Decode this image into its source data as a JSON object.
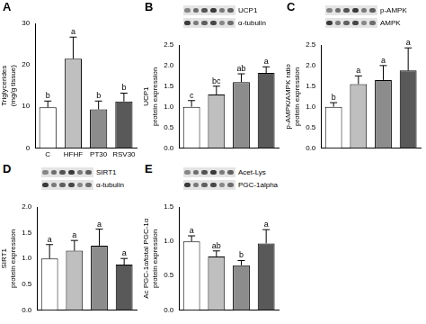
{
  "chart_data": [
    {
      "panel": "A",
      "type": "bar",
      "categories": [
        "C",
        "HFHF",
        "PT30",
        "RSV30"
      ],
      "values": [
        9.8,
        21.5,
        9.3,
        11.2
      ],
      "errors": [
        1.5,
        5.2,
        2.0,
        2.0
      ],
      "letters": [
        "b",
        "a",
        "b",
        "b"
      ],
      "colors": [
        "#ffffff",
        "#bfbfbf",
        "#8c8c8c",
        "#595959"
      ],
      "y_label": [
        "Triglycerides",
        "(mg/g tissue)"
      ],
      "ylim": [
        0,
        30
      ],
      "yticks": [
        0,
        10,
        20,
        30
      ],
      "grid": false
    },
    {
      "panel": "B",
      "type": "bar",
      "categories": [
        null,
        null,
        null,
        null
      ],
      "values": [
        1.0,
        1.3,
        1.6,
        1.82
      ],
      "errors": [
        0.15,
        0.2,
        0.2,
        0.15
      ],
      "letters": [
        "c",
        "bc",
        "ab",
        "a"
      ],
      "colors": [
        "#ffffff",
        "#bfbfbf",
        "#8c8c8c",
        "#595959"
      ],
      "y_label": [
        "UCP1",
        "protein expression"
      ],
      "blot_labels": [
        "UCP1",
        "α-tubulin"
      ],
      "ylim": [
        0,
        2.5
      ],
      "yticks": [
        {
          "value": 0,
          "label": "0.0"
        },
        {
          "value": 0.5,
          "label": "0.5"
        },
        {
          "value": 1,
          "label": "1.0"
        },
        {
          "value": 1.5,
          "label": "1.5"
        },
        {
          "value": 2,
          "label": "2.0"
        },
        {
          "value": 2.5,
          "label": "2.5"
        }
      ],
      "grid": false
    },
    {
      "panel": "C",
      "type": "bar",
      "categories": [
        null,
        null,
        null,
        null
      ],
      "values": [
        1.0,
        1.55,
        1.65,
        1.88
      ],
      "errors": [
        0.1,
        0.2,
        0.35,
        0.55
      ],
      "letters": [
        "b",
        "a",
        "a",
        "a"
      ],
      "colors": [
        "#ffffff",
        "#bfbfbf",
        "#8c8c8c",
        "#595959"
      ],
      "y_label": [
        "p-AMPK/AMPK ratio",
        "protein expression"
      ],
      "blot_labels": [
        "p-AMPK",
        "AMPK"
      ],
      "ylim": [
        0,
        2.5
      ],
      "yticks": [
        {
          "value": 0,
          "label": "0.0"
        },
        {
          "value": 0.5,
          "label": "0.5"
        },
        {
          "value": 1,
          "label": "1.0"
        },
        {
          "value": 1.5,
          "label": "1.5"
        },
        {
          "value": 2,
          "label": "2.0"
        },
        {
          "value": 2.5,
          "label": "2.5"
        }
      ],
      "grid": false
    },
    {
      "panel": "D",
      "type": "bar",
      "categories": [
        null,
        null,
        null,
        null
      ],
      "values": [
        1.0,
        1.15,
        1.25,
        0.88
      ],
      "errors": [
        0.27,
        0.2,
        0.32,
        0.12
      ],
      "letters": [
        "a",
        "a",
        "a",
        "a"
      ],
      "colors": [
        "#ffffff",
        "#bfbfbf",
        "#8c8c8c",
        "#595959"
      ],
      "y_label": [
        "SIRT1",
        "protein expression"
      ],
      "blot_labels": [
        "SIRT1",
        "α-tubulin"
      ],
      "ylim": [
        0,
        2.0
      ],
      "yticks": [
        {
          "value": 0,
          "label": "0.0"
        },
        {
          "value": 0.5,
          "label": "0.5"
        },
        {
          "value": 1,
          "label": "1.0"
        },
        {
          "value": 1.5,
          "label": "1.5"
        },
        {
          "value": 2,
          "label": "2.0"
        }
      ],
      "grid": false
    },
    {
      "panel": "E",
      "type": "bar",
      "categories": [
        null,
        null,
        null,
        null
      ],
      "values": [
        1.0,
        0.78,
        0.65,
        0.97
      ],
      "errors": [
        0.08,
        0.08,
        0.07,
        0.2
      ],
      "letters": [
        "a",
        "ab",
        "b",
        "a"
      ],
      "colors": [
        "#ffffff",
        "#bfbfbf",
        "#8c8c8c",
        "#595959"
      ],
      "y_label": [
        "Ac PGC-1α/total PGC-1α",
        "protein expression"
      ],
      "blot_labels": [
        "Acet-Lys",
        "PGC-1alpha"
      ],
      "ylim": [
        0,
        1.5
      ],
      "yticks": [
        {
          "value": 0,
          "label": "0.0"
        },
        {
          "value": 0.5,
          "label": "0.5"
        },
        {
          "value": 1,
          "label": "1.0"
        },
        {
          "value": 1.5,
          "label": "1.5"
        }
      ],
      "grid": false
    }
  ]
}
